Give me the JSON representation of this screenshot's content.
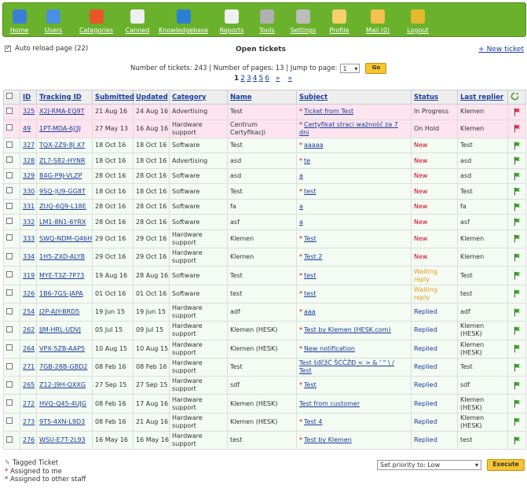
{
  "nav": [
    {
      "label": "Home",
      "icon": "home-icon",
      "color": "#3b7fd4"
    },
    {
      "label": "Users",
      "icon": "users-icon",
      "color": "#4a90e2"
    },
    {
      "label": "Categories",
      "icon": "categories-icon",
      "color": "#e8562a"
    },
    {
      "label": "Canned",
      "icon": "canned-icon",
      "color": "#f0f0f0"
    },
    {
      "label": "Knowledgebase",
      "icon": "info-icon",
      "color": "#2a7fd4"
    },
    {
      "label": "Reports",
      "icon": "reports-icon",
      "color": "#f0f0f0"
    },
    {
      "label": "Tools",
      "icon": "tools-icon",
      "color": "#b0b0b0"
    },
    {
      "label": "Settings",
      "icon": "gear-icon",
      "color": "#bdbdbd"
    },
    {
      "label": "Profile",
      "icon": "profile-icon",
      "color": "#f3d06b"
    },
    {
      "label": "Mail (0)",
      "icon": "mail-icon",
      "color": "#f2c14e"
    },
    {
      "label": "Logout",
      "icon": "key-icon",
      "color": "#e5b82e"
    }
  ],
  "toolbar": {
    "auto_reload": "Auto reload page (22)",
    "title": "Open tickets",
    "new_ticket": "+ New ticket"
  },
  "counts": {
    "text": "Number of tickets: 243 | Number of pages: 13 | Jump to page:",
    "page_select": "1",
    "go": "Go"
  },
  "pagination": [
    "1",
    "2",
    "3",
    "4",
    "5",
    "6",
    "»",
    "»"
  ],
  "table": {
    "headers": [
      "ID",
      "Tracking ID",
      "Submitted",
      "Updated",
      "Category",
      "Name",
      "Subject",
      "Status",
      "Last replier"
    ],
    "rows": [
      {
        "id": "325",
        "tracking": "X2J-RMA-EQ9T",
        "submitted": "21 Aug 16",
        "updated": "24 Aug 16",
        "category": "Advertising",
        "name": "Test",
        "subject": "Ticket from Test",
        "star": true,
        "status": "In Progress",
        "status_class": "st-inprog",
        "last": "Klemen",
        "flag": "red",
        "hl": true
      },
      {
        "id": "49",
        "tracking": "1PT-MDA-6J3J",
        "submitted": "27 May 13",
        "updated": "16 Aug 16",
        "category": "Hardware support",
        "name": "Centrum Certyfikacji",
        "subject": "Certyfikat straci ważność za 7 dni",
        "star": true,
        "status": "On Hold",
        "status_class": "st-hold",
        "last": "Klemen",
        "flag": "red",
        "hl": true
      },
      {
        "id": "327",
        "tracking": "TQX-2Z9-8J X7",
        "submitted": "18 Oct 16",
        "updated": "18 Oct 16",
        "category": "Software",
        "name": "Test",
        "subject": "aaaaa",
        "star": true,
        "status": "New",
        "status_class": "st-new",
        "last": "Test",
        "flag": "green"
      },
      {
        "id": "328",
        "tracking": "ZL7-S82-HYNR",
        "submitted": "18 Oct 16",
        "updated": "18 Oct 16",
        "category": "Advertising",
        "name": "asd",
        "subject": "te",
        "star": true,
        "status": "New",
        "status_class": "st-new",
        "last": "asd",
        "flag": "green"
      },
      {
        "id": "329",
        "tracking": "B4G-P9J-VLZP",
        "submitted": "28 Oct 16",
        "updated": "28 Oct 16",
        "category": "Software",
        "name": "asd",
        "subject": "a",
        "star": false,
        "status": "New",
        "status_class": "st-new",
        "last": "asd",
        "flag": "green"
      },
      {
        "id": "330",
        "tracking": "9SQ-JU9-GG8T",
        "submitted": "18 Oct 16",
        "updated": "18 Oct 16",
        "category": "Software",
        "name": "Test",
        "subject": "test",
        "star": true,
        "status": "New",
        "status_class": "st-new",
        "last": "Test",
        "flag": "green"
      },
      {
        "id": "331",
        "tracking": "ZUQ-6Q9-L18E",
        "submitted": "28 Oct 16",
        "updated": "28 Oct 16",
        "category": "Software",
        "name": "fa",
        "subject": "a",
        "star": false,
        "status": "New",
        "status_class": "st-new",
        "last": "fa",
        "flag": "green"
      },
      {
        "id": "332",
        "tracking": "LM1-8N1-6YRX",
        "submitted": "28 Oct 16",
        "updated": "28 Oct 16",
        "category": "Software",
        "name": "asf",
        "subject": "a",
        "star": false,
        "status": "New",
        "status_class": "st-new",
        "last": "asf",
        "flag": "green"
      },
      {
        "id": "333",
        "tracking": "SWQ-NDM-Q46H",
        "submitted": "29 Oct 16",
        "updated": "29 Oct 16",
        "category": "Hardware support",
        "name": "Klemen",
        "subject": "Test",
        "star": true,
        "status": "New",
        "status_class": "st-new",
        "last": "Klemen",
        "flag": "green"
      },
      {
        "id": "334",
        "tracking": "1H5-ZXD-ALYB",
        "submitted": "29 Oct 16",
        "updated": "29 Oct 16",
        "category": "Hardware support",
        "name": "Klemen",
        "subject": "Test 2",
        "star": true,
        "status": "New",
        "status_class": "st-new",
        "last": "Klemen",
        "flag": "green"
      },
      {
        "id": "319",
        "tracking": "MYE-T3Z-7P73",
        "submitted": "19 Aug 16",
        "updated": "28 Aug 16",
        "category": "Software",
        "name": "Test",
        "subject": "test",
        "star": true,
        "status": "Waiting reply",
        "status_class": "st-wait",
        "last": "Test",
        "flag": "green"
      },
      {
        "id": "326",
        "tracking": "1B6-7GS-JAPA",
        "submitted": "01 Oct 16",
        "updated": "01 Oct 16",
        "category": "Software",
        "name": "test",
        "subject": "test",
        "star": true,
        "status": "Waiting reply",
        "status_class": "st-wait",
        "last": "test",
        "flag": "green"
      },
      {
        "id": "254",
        "tracking": "J2P-AJY-BRD5",
        "submitted": "19 Jun 15",
        "updated": "19 Jun 15",
        "category": "Hardware support",
        "name": "adf",
        "subject": "aaa",
        "star": true,
        "status": "Replied",
        "status_class": "st-replied",
        "last": "adf",
        "flag": "green"
      },
      {
        "id": "262",
        "tracking": "JJM-HRL-UDVJ",
        "submitted": "05 Jul 15",
        "updated": "09 Jul 15",
        "category": "Hardware support",
        "name": "Klemen (HESK)",
        "subject": "Test by Klemen (HESK.com)",
        "star": true,
        "status": "Replied",
        "status_class": "st-replied",
        "last": "Klemen (HESK)",
        "flag": "green"
      },
      {
        "id": "264",
        "tracking": "VPX-5ZB-AAP5",
        "submitted": "10 Aug 15",
        "updated": "10 Aug 15",
        "category": "Hardware support",
        "name": "Klemen (HESK)",
        "subject": "New notification",
        "star": true,
        "status": "Replied",
        "status_class": "st-replied",
        "last": "Klemen (HESK)",
        "flag": "green"
      },
      {
        "id": "271",
        "tracking": "7GB-28B-GBD2",
        "submitted": "08 Feb 16",
        "updated": "08 Feb 16",
        "category": "Hardware support",
        "name": "Test",
        "subject": "Test šđčžĆ ŠĆČŽĐ < > & ' \" \\ / Test",
        "star": false,
        "status": "Replied",
        "status_class": "st-replied",
        "last": "Test",
        "flag": "green"
      },
      {
        "id": "265",
        "tracking": "Z12-J9H-QXXG",
        "submitted": "27 Sep 15",
        "updated": "27 Sep 15",
        "category": "Hardware support",
        "name": "sdf",
        "subject": "Test",
        "star": true,
        "status": "Replied",
        "status_class": "st-replied",
        "last": "sdf",
        "flag": "green"
      },
      {
        "id": "272",
        "tracking": "HVQ-Q45-4UJG",
        "submitted": "08 Feb 16",
        "updated": "17 Aug 16",
        "category": "Hardware support",
        "name": "Klemen (HESK)",
        "subject": "Test from customer",
        "star": false,
        "status": "Replied",
        "status_class": "st-replied",
        "last": "Klemen (HESK)",
        "flag": "green"
      },
      {
        "id": "273",
        "tracking": "9T5-4XN-L9D3",
        "submitted": "08 Feb 16",
        "updated": "21 Aug 16",
        "category": "Hardware support",
        "name": "Klemen (HESK)",
        "subject": "Test 4",
        "star": true,
        "status": "Replied",
        "status_class": "st-replied",
        "last": "Klemen (HESK)",
        "flag": "green"
      },
      {
        "id": "276",
        "tracking": "WSU-E7T-2L93",
        "submitted": "16 May 16",
        "updated": "16 May 16",
        "category": "Hardware support",
        "name": "test",
        "subject": "Test by Klemen",
        "star": true,
        "status": "Replied",
        "status_class": "st-replied",
        "last": "test",
        "flag": "green"
      }
    ]
  },
  "legend": {
    "tagged": "Tagged Ticket",
    "me": "Assigned to me",
    "other": "Assigned to other staff"
  },
  "footer": {
    "priority": "Set priority to: Low",
    "execute": "Execute"
  }
}
